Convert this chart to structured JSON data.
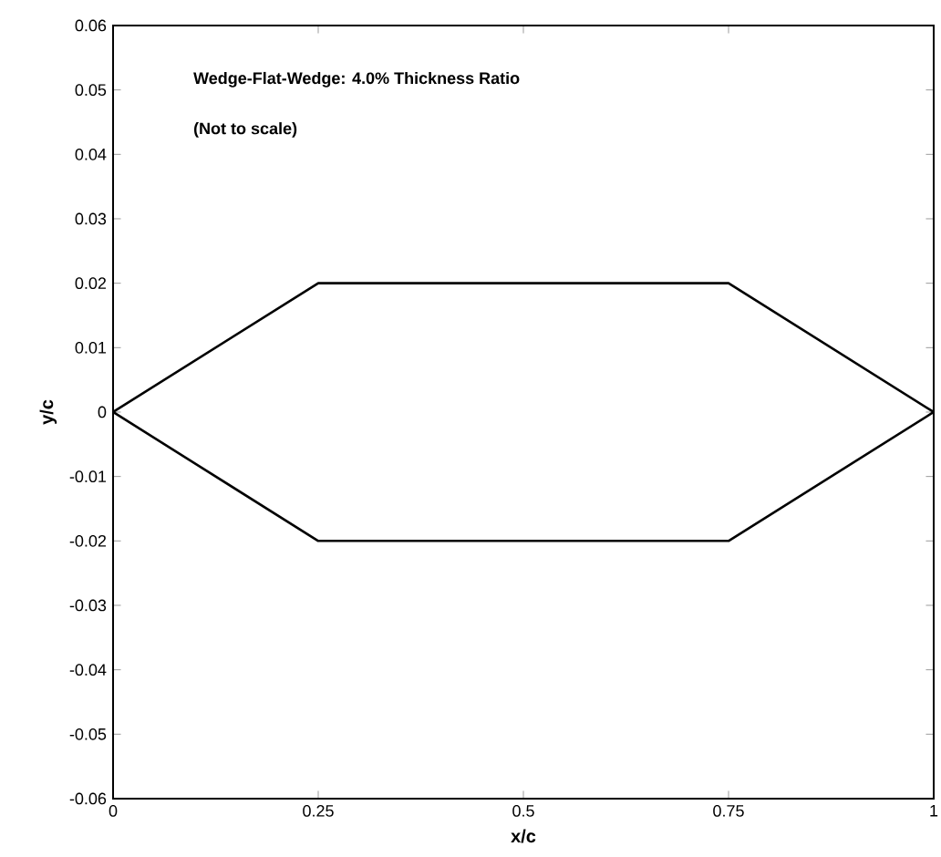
{
  "chart_data": {
    "type": "line",
    "xlabel": "x/c",
    "ylabel": "y/c",
    "annotations": [
      "Wedge-Flat-Wedge: 4.0% Thickness Ratio",
      "(Not to scale)"
    ],
    "series": [
      {
        "color": "#000000",
        "x": [
          0,
          0.25,
          0.75,
          1
        ],
        "values": [
          0,
          0.02,
          0.02,
          0
        ]
      },
      {
        "color": "#000000",
        "x": [
          0,
          0.25,
          0.75,
          1
        ],
        "values": [
          0,
          -0.02,
          -0.02,
          0
        ]
      }
    ],
    "xlim": [
      0,
      1
    ],
    "ylim": [
      -0.06,
      0.06
    ],
    "xticks": [
      0,
      0.25,
      0.5,
      0.75,
      1
    ],
    "yticks": [
      -0.06,
      -0.05,
      -0.04,
      -0.03,
      -0.02,
      -0.01,
      0,
      0.01,
      0.02,
      0.03,
      0.04,
      0.05,
      0.06
    ]
  }
}
